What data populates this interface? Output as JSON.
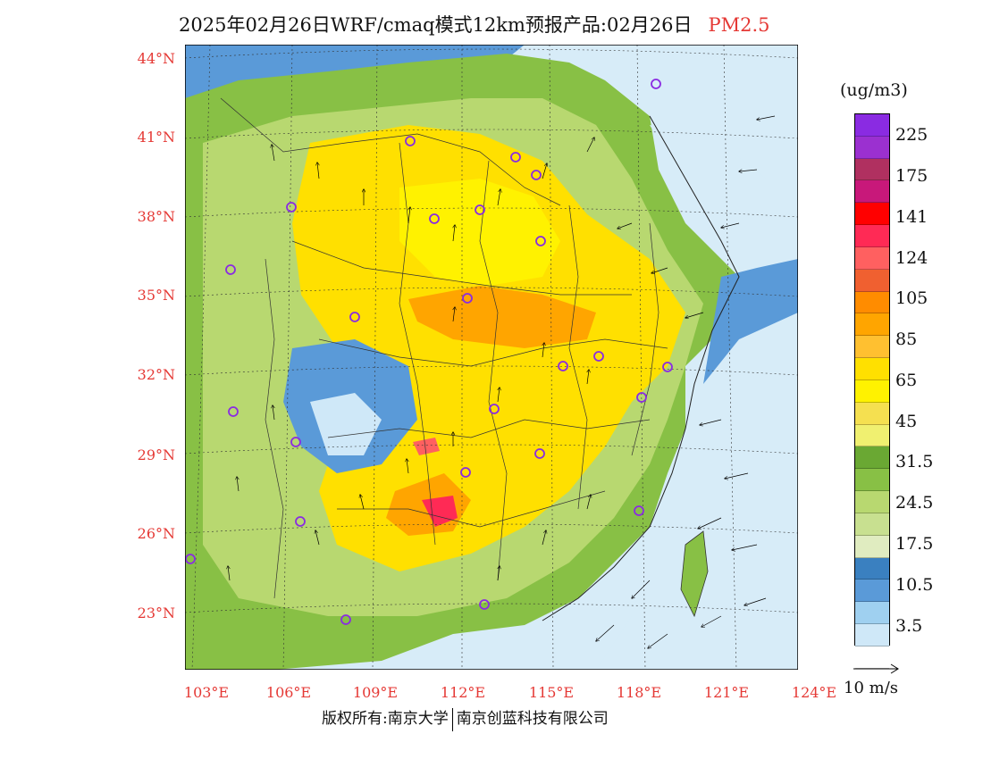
{
  "header": {
    "title": "2025年02月26日WRF/cmaq模式12km预报产品:02月26日",
    "variable": "PM2.5"
  },
  "axes": {
    "lat_labels": [
      "44°N",
      "41°N",
      "38°N",
      "35°N",
      "32°N",
      "29°N",
      "26°N",
      "23°N"
    ],
    "lon_labels": [
      "103°E",
      "106°E",
      "109°E",
      "112°E",
      "115°E",
      "118°E",
      "121°E",
      "124°E"
    ]
  },
  "colorbar": {
    "units": "(ug/m3)",
    "labels": [
      "225",
      "175",
      "141",
      "124",
      "105",
      "85",
      "65",
      "45",
      "31.5",
      "24.5",
      "17.5",
      "10.5",
      "3.5"
    ],
    "colors": [
      "#8a2be2",
      "#9b30d0",
      "#b03060",
      "#c8187a",
      "#ff0000",
      "#ff2a55",
      "#ff6060",
      "#f06030",
      "#ff8c00",
      "#ffa500",
      "#ffc030",
      "#ffe000",
      "#fff200",
      "#f5e050",
      "#f0f070",
      "#6aa833",
      "#88c045",
      "#b8d870",
      "#c8e090",
      "#e0ecc0",
      "#3a80c0",
      "#5a9ad8",
      "#9fd0f0",
      "#cfe8f8",
      "#ffffff"
    ]
  },
  "wind_scale": {
    "label": "10 m/s"
  },
  "footer": {
    "left": "版权所有:南京大学",
    "right": "南京创蓝科技有限公司"
  }
}
